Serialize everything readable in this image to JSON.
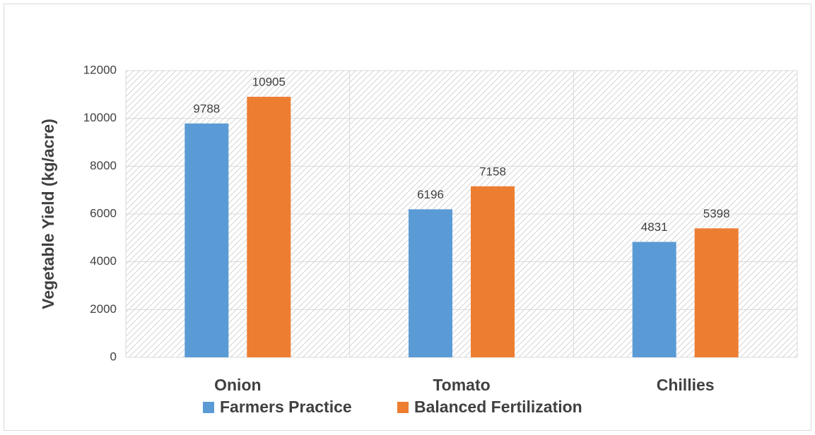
{
  "chart_data": {
    "type": "bar",
    "y_axis_label": "Vegetable Yield (kg/acre)",
    "categories": [
      "Onion",
      "Tomato",
      "Chillies"
    ],
    "series": [
      {
        "name": "Farmers Practice",
        "color": "#5b9bd5",
        "values": [
          9788,
          6196,
          4831
        ]
      },
      {
        "name": "Balanced Fertilization",
        "color": "#ed7d31",
        "values": [
          10905,
          7158,
          5398
        ]
      }
    ],
    "ylim": [
      0,
      12000
    ],
    "yticks": [
      0,
      2000,
      4000,
      6000,
      8000,
      10000,
      12000
    ],
    "grid": true,
    "legend": "bottom"
  }
}
